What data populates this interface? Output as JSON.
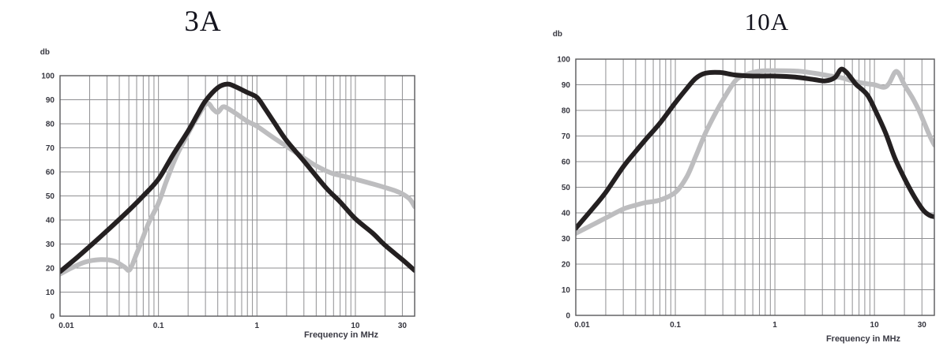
{
  "page": {
    "background": "#ffffff"
  },
  "chart_data": [
    {
      "type": "line",
      "title": "3A",
      "ylabel": "db",
      "xlabel": "Frequency in MHz",
      "x_scale": "log",
      "x_range": [
        0.01,
        40
      ],
      "y_range": [
        0,
        100
      ],
      "grid": true,
      "legend": "none",
      "x_ticks": [
        0.01,
        0.1,
        1,
        10,
        30
      ],
      "x_tick_labels": [
        "0.01",
        "0.1",
        "1",
        "10",
        "30"
      ],
      "y_ticks": [
        0,
        10,
        20,
        30,
        40,
        50,
        60,
        70,
        80,
        90,
        100
      ],
      "y_tick_labels": [
        "0",
        "10",
        "20",
        "30",
        "40",
        "50",
        "60",
        "70",
        "80",
        "90",
        "100"
      ],
      "grid_color": "#8f8f92",
      "border_color": "#58585a",
      "series": [
        {
          "name": "gray-curve",
          "color": "#bdbdbf",
          "points": [
            [
              0.01,
              17.5
            ],
            [
              0.013,
              20
            ],
            [
              0.018,
              22.5
            ],
            [
              0.025,
              23.5
            ],
            [
              0.035,
              23
            ],
            [
              0.045,
              20.5
            ],
            [
              0.051,
              19.3
            ],
            [
              0.06,
              26
            ],
            [
              0.07,
              33
            ],
            [
              0.08,
              39
            ],
            [
              0.1,
              47
            ],
            [
              0.12,
              56
            ],
            [
              0.15,
              66
            ],
            [
              0.2,
              76
            ],
            [
              0.25,
              83
            ],
            [
              0.31,
              88.5
            ],
            [
              0.36,
              86
            ],
            [
              0.4,
              84.8
            ],
            [
              0.45,
              87
            ],
            [
              0.5,
              86.5
            ],
            [
              0.6,
              84.5
            ],
            [
              0.8,
              81
            ],
            [
              1,
              79
            ],
            [
              1.5,
              74
            ],
            [
              2.4,
              68.5
            ],
            [
              3.2,
              65
            ],
            [
              4,
              62.5
            ],
            [
              5.7,
              59.5
            ],
            [
              8,
              58
            ],
            [
              11,
              56.5
            ],
            [
              15,
              55
            ],
            [
              20,
              53.5
            ],
            [
              26,
              52
            ],
            [
              31,
              50.5
            ],
            [
              36,
              48.5
            ],
            [
              40,
              45.5
            ]
          ]
        },
        {
          "name": "black-curve",
          "color": "#242021",
          "points": [
            [
              0.01,
              18.5
            ],
            [
              0.015,
              24.5
            ],
            [
              0.02,
              29
            ],
            [
              0.03,
              35.5
            ],
            [
              0.05,
              44
            ],
            [
              0.07,
              50
            ],
            [
              0.1,
              57
            ],
            [
              0.14,
              67
            ],
            [
              0.2,
              77
            ],
            [
              0.25,
              84
            ],
            [
              0.3,
              89.5
            ],
            [
              0.4,
              95
            ],
            [
              0.5,
              96.5
            ],
            [
              0.6,
              95.5
            ],
            [
              0.8,
              93
            ],
            [
              1,
              91
            ],
            [
              1.2,
              86.5
            ],
            [
              1.5,
              80.5
            ],
            [
              2,
              73
            ],
            [
              3,
              64.5
            ],
            [
              5,
              53.5
            ],
            [
              7,
              47.5
            ],
            [
              10,
              40.5
            ],
            [
              15,
              34.5
            ],
            [
              20,
              29.5
            ],
            [
              30,
              23.5
            ],
            [
              40,
              19
            ]
          ]
        }
      ]
    },
    {
      "type": "line",
      "title": "10A",
      "ylabel": "db",
      "xlabel": "Frequency in MHz",
      "x_scale": "log",
      "x_range": [
        0.01,
        40
      ],
      "y_range": [
        0,
        100
      ],
      "grid": true,
      "legend": "none",
      "x_ticks": [
        0.01,
        0.1,
        1,
        10,
        30
      ],
      "x_tick_labels": [
        "0.01",
        "0.1",
        "1",
        "10",
        "30"
      ],
      "y_ticks": [
        0,
        10,
        20,
        30,
        40,
        50,
        60,
        70,
        80,
        90,
        100
      ],
      "y_tick_labels": [
        "0",
        "10",
        "20",
        "30",
        "40",
        "50",
        "60",
        "70",
        "80",
        "90",
        "100"
      ],
      "grid_color": "#8f8f92",
      "border_color": "#58585a",
      "series": [
        {
          "name": "gray-curve",
          "color": "#bdbdbf",
          "points": [
            [
              0.01,
              32
            ],
            [
              0.015,
              35.5
            ],
            [
              0.02,
              38
            ],
            [
              0.03,
              41.5
            ],
            [
              0.04,
              43
            ],
            [
              0.05,
              44
            ],
            [
              0.07,
              45
            ],
            [
              0.1,
              48
            ],
            [
              0.13,
              54
            ],
            [
              0.16,
              62
            ],
            [
              0.2,
              71
            ],
            [
              0.25,
              78.5
            ],
            [
              0.3,
              84
            ],
            [
              0.4,
              91.5
            ],
            [
              0.5,
              93.8
            ],
            [
              0.7,
              95.3
            ],
            [
              1,
              95.5
            ],
            [
              1.7,
              95.3
            ],
            [
              2.5,
              94.5
            ],
            [
              3.5,
              93.5
            ],
            [
              4.6,
              92.8
            ],
            [
              6,
              91.5
            ],
            [
              8,
              90.5
            ],
            [
              10,
              90
            ],
            [
              12.4,
              89
            ],
            [
              14,
              90.5
            ],
            [
              16,
              94.8
            ],
            [
              17.5,
              94.5
            ],
            [
              20,
              90
            ],
            [
              24,
              85
            ],
            [
              28,
              80
            ],
            [
              31,
              76
            ],
            [
              36,
              70
            ],
            [
              40,
              66.5
            ]
          ]
        },
        {
          "name": "black-curve",
          "color": "#242021",
          "points": [
            [
              0.01,
              34
            ],
            [
              0.015,
              42
            ],
            [
              0.02,
              48
            ],
            [
              0.03,
              58
            ],
            [
              0.04,
              64
            ],
            [
              0.05,
              68.5
            ],
            [
              0.07,
              75
            ],
            [
              0.1,
              83
            ],
            [
              0.13,
              88.5
            ],
            [
              0.16,
              92.5
            ],
            [
              0.2,
              94.5
            ],
            [
              0.28,
              94.8
            ],
            [
              0.4,
              93.8
            ],
            [
              0.6,
              93.4
            ],
            [
              1,
              93.4
            ],
            [
              1.6,
              93
            ],
            [
              2.5,
              92
            ],
            [
              3.2,
              91.5
            ],
            [
              4,
              92.8
            ],
            [
              4.6,
              96
            ],
            [
              5.2,
              95
            ],
            [
              6,
              92
            ],
            [
              6.6,
              90
            ],
            [
              8.5,
              86
            ],
            [
              10.5,
              79
            ],
            [
              13,
              71
            ],
            [
              16,
              61.5
            ],
            [
              20,
              53.5
            ],
            [
              25,
              46.5
            ],
            [
              31,
              41
            ],
            [
              36,
              39
            ],
            [
              40,
              38.5
            ]
          ]
        }
      ]
    }
  ]
}
